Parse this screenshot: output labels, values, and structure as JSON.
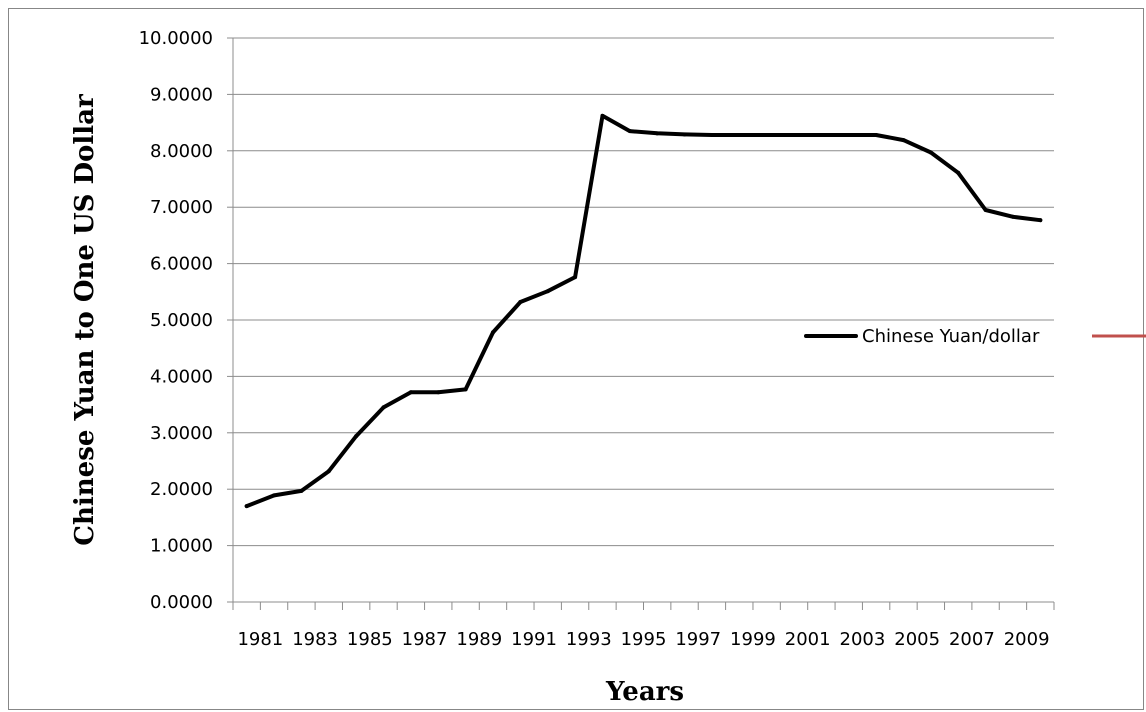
{
  "chart_data": {
    "type": "line",
    "x": [
      1981,
      1982,
      1983,
      1984,
      1985,
      1986,
      1987,
      1988,
      1989,
      1990,
      1991,
      1992,
      1993,
      1994,
      1995,
      1996,
      1997,
      1998,
      1999,
      2000,
      2001,
      2002,
      2003,
      2004,
      2005,
      2006,
      2007,
      2008,
      2009,
      2010
    ],
    "x_tick_labels": [
      "1981",
      "1983",
      "1985",
      "1987",
      "1989",
      "1991",
      "1993",
      "1995",
      "1997",
      "1999",
      "2001",
      "2003",
      "2005",
      "2007",
      "2009"
    ],
    "series": [
      {
        "name": "Chinese Yuan/dollar",
        "color": "#000000",
        "values": [
          1.7,
          1.89,
          1.97,
          2.32,
          2.94,
          3.45,
          3.72,
          3.72,
          3.77,
          4.78,
          5.32,
          5.51,
          5.76,
          8.62,
          8.35,
          8.31,
          8.29,
          8.28,
          8.28,
          8.28,
          8.28,
          8.28,
          8.28,
          8.28,
          8.19,
          7.97,
          7.61,
          6.95,
          6.83,
          6.77
        ]
      }
    ],
    "extra_legend_marker_color": "#c0504d",
    "y_tick_labels": [
      "0.0000",
      "1.0000",
      "2.0000",
      "3.0000",
      "4.0000",
      "5.0000",
      "6.0000",
      "7.0000",
      "8.0000",
      "9.0000",
      "10.0000"
    ],
    "ylim": [
      0,
      10
    ],
    "xlabel": "Years",
    "ylabel": "Chinese Yuan to One US Dollar",
    "grid": true,
    "legend_position": "right"
  }
}
